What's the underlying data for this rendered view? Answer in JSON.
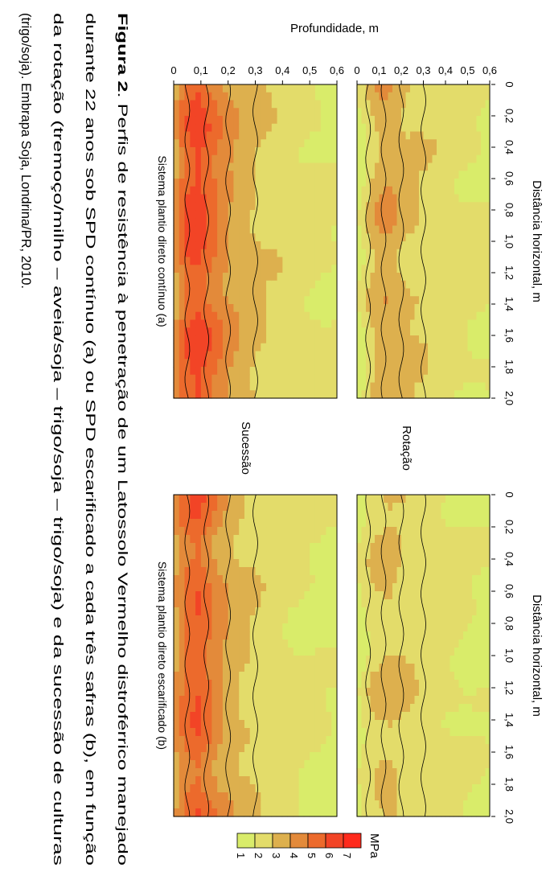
{
  "page_title": "",
  "chart_data": {
    "type": "heatmap",
    "orientation": "rotated-90-clockwise",
    "shared_axes": {
      "x_label": "Distância horizontal, m",
      "x_ticks": [
        "0",
        "0,2",
        "0,4",
        "0,6",
        "0,8",
        "1,0",
        "1,2",
        "1,4",
        "1,6",
        "1,8",
        "2,0"
      ],
      "x_range": [
        0,
        2.0
      ],
      "y_label": "Profundidade, m",
      "y_ticks": [
        "0",
        "0,1",
        "0,2",
        "0,3",
        "0,4",
        "0,5",
        "0,6"
      ],
      "y_range": [
        0,
        0.6
      ]
    },
    "row_labels": {
      "rotacao": "Rotação",
      "sucessao": "Sucessão"
    },
    "column_labels": {
      "continuo": "Sistema plantio direto contínuo (a)",
      "escarificado": "Sistema plantio direto escarificado (b)"
    },
    "legend": {
      "title": "MPa",
      "values": [
        "1",
        "2",
        "3",
        "4",
        "5",
        "6",
        "7"
      ],
      "colors": [
        "#d9ec6a",
        "#e3dc6a",
        "#ddb04e",
        "#e38a3a",
        "#ec6a2c",
        "#f24426",
        "#ff2a1c"
      ]
    },
    "panels": [
      {
        "id": "rotacao-continuo",
        "depth_profile_mpa": [
          {
            "depth": 0.0,
            "mpa": 1.5
          },
          {
            "depth": 0.03,
            "mpa": 2.2
          },
          {
            "depth": 0.07,
            "mpa": 3.2
          },
          {
            "depth": 0.12,
            "mpa": 3.8
          },
          {
            "depth": 0.17,
            "mpa": 3.6
          },
          {
            "depth": 0.22,
            "mpa": 3.1
          },
          {
            "depth": 0.3,
            "mpa": 2.8
          },
          {
            "depth": 0.4,
            "mpa": 2.5
          },
          {
            "depth": 0.5,
            "mpa": 2.2
          },
          {
            "depth": 0.6,
            "mpa": 2.0
          }
        ]
      },
      {
        "id": "rotacao-escarificado",
        "depth_profile_mpa": [
          {
            "depth": 0.0,
            "mpa": 1.5
          },
          {
            "depth": 0.05,
            "mpa": 2.5
          },
          {
            "depth": 0.1,
            "mpa": 3.0
          },
          {
            "depth": 0.15,
            "mpa": 3.2
          },
          {
            "depth": 0.2,
            "mpa": 3.0
          },
          {
            "depth": 0.3,
            "mpa": 2.6
          },
          {
            "depth": 0.4,
            "mpa": 2.3
          },
          {
            "depth": 0.5,
            "mpa": 2.0
          },
          {
            "depth": 0.6,
            "mpa": 1.8
          }
        ]
      },
      {
        "id": "sucessao-continuo",
        "depth_profile_mpa": [
          {
            "depth": 0.0,
            "mpa": 3.5
          },
          {
            "depth": 0.02,
            "mpa": 4.8
          },
          {
            "depth": 0.05,
            "mpa": 5.8
          },
          {
            "depth": 0.09,
            "mpa": 6.3
          },
          {
            "depth": 0.13,
            "mpa": 5.5
          },
          {
            "depth": 0.18,
            "mpa": 4.4
          },
          {
            "depth": 0.25,
            "mpa": 3.5
          },
          {
            "depth": 0.35,
            "mpa": 2.8
          },
          {
            "depth": 0.45,
            "mpa": 2.4
          },
          {
            "depth": 0.55,
            "mpa": 2.1
          },
          {
            "depth": 0.6,
            "mpa": 2.0
          }
        ]
      },
      {
        "id": "sucessao-escarificado",
        "depth_profile_mpa": [
          {
            "depth": 0.0,
            "mpa": 3.5
          },
          {
            "depth": 0.02,
            "mpa": 4.5
          },
          {
            "depth": 0.05,
            "mpa": 5.3
          },
          {
            "depth": 0.09,
            "mpa": 5.8
          },
          {
            "depth": 0.13,
            "mpa": 5.0
          },
          {
            "depth": 0.18,
            "mpa": 4.0
          },
          {
            "depth": 0.25,
            "mpa": 3.1
          },
          {
            "depth": 0.35,
            "mpa": 2.5
          },
          {
            "depth": 0.45,
            "mpa": 2.1
          },
          {
            "depth": 0.55,
            "mpa": 1.9
          },
          {
            "depth": 0.6,
            "mpa": 1.8
          }
        ]
      }
    ]
  },
  "caption": {
    "label": "Figura 2",
    "text": ". Perfis de resistência à penetração de um Latossolo Vermelho distroférrico manejado durante 22 anos sob SPD contínuo (a) ou SPD escarificado a cada três safras (b), em função da rotação (tremoço/milho – aveia/soja – trigo/soja – trigo/soja) e da sucessão de culturas (trigo/soja).  Embrapa Soja, Londrina/PR, 2010.",
    "lines": [
      "Perfis de resistência à penetração de um Latossolo Vermelho distroférrico manejado",
      "durante 22 anos sob SPD contínuo (a) ou SPD escarificado a cada três safras (b), em função",
      "da rotação (tremoço/milho – aveia/soja – trigo/soja – trigo/soja) e da sucessão de culturas",
      "(trigo/soja).  Embrapa Soja, Londrina/PR, 2010."
    ]
  }
}
